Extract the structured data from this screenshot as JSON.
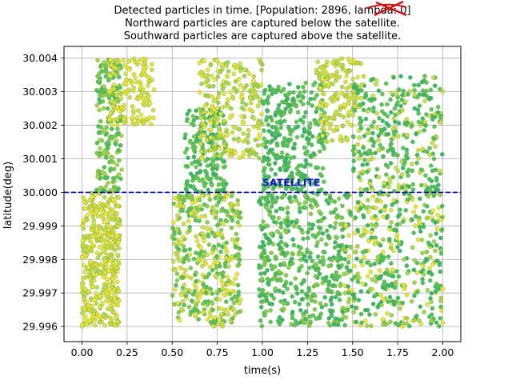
{
  "chart_data": {
    "type": "scatter",
    "title_lines": [
      "Detected particles in time. [Population: 2896, lambda: 0]",
      "Northward particles are captured below the satellite.",
      "Southward particles are captured above the satellite."
    ],
    "xlabel": "time(s)",
    "ylabel": "latitude(deg)",
    "xlim": [
      -0.1,
      2.1
    ],
    "ylim": [
      29.99555,
      30.00435
    ],
    "xticks": [
      0.0,
      0.25,
      0.5,
      0.75,
      1.0,
      1.25,
      1.5,
      1.75,
      2.0
    ],
    "xtick_labels": [
      "0.00",
      "0.25",
      "0.50",
      "0.75",
      "1.00",
      "1.25",
      "1.50",
      "1.75",
      "2.00"
    ],
    "yticks": [
      29.996,
      29.997,
      29.998,
      29.999,
      30.0,
      30.001,
      30.002,
      30.003,
      30.004
    ],
    "ytick_labels": [
      "29.996",
      "29.997",
      "29.998",
      "29.999",
      "30.000",
      "30.001",
      "30.002",
      "30.003",
      "30.004"
    ],
    "grid": true,
    "population": 2896,
    "satellite": {
      "latitude": 30.0,
      "label": "SATELLITE",
      "label_x": 1.0,
      "color": "#0000aa"
    },
    "clusters": [
      {
        "x": [
          0.0,
          0.21
        ],
        "y": [
          29.996,
          30.0
        ],
        "colors": [
          "#e8e830",
          "#d6e23a",
          "#b8dc4a"
        ],
        "density": 420
      },
      {
        "x": [
          0.08,
          0.22
        ],
        "y": [
          30.0,
          30.004
        ],
        "colors": [
          "#3fc25e",
          "#6bcb4d",
          "#9cd54a"
        ],
        "density": 200
      },
      {
        "x": [
          0.15,
          0.4
        ],
        "y": [
          30.002,
          30.004
        ],
        "colors": [
          "#e8e830",
          "#c8e040",
          "#dde635"
        ],
        "density": 140
      },
      {
        "x": [
          0.5,
          0.88
        ],
        "y": [
          29.996,
          30.0
        ],
        "colors": [
          "#e8e830",
          "#c8e040",
          "#7ccf4a",
          "#4dc35a"
        ],
        "density": 430
      },
      {
        "x": [
          0.57,
          0.8
        ],
        "y": [
          30.0,
          30.0025
        ],
        "colors": [
          "#2cb66a",
          "#3fc25e",
          "#5ec952"
        ],
        "density": 170
      },
      {
        "x": [
          0.65,
          1.0
        ],
        "y": [
          30.001,
          30.004
        ],
        "colors": [
          "#c8e040",
          "#e8e830",
          "#9cd54a"
        ],
        "density": 240
      },
      {
        "x": [
          0.98,
          1.45
        ],
        "y": [
          29.996,
          30.0
        ],
        "colors": [
          "#2cb66a",
          "#3fc25e",
          "#56c656",
          "#7ccf4a"
        ],
        "density": 460
      },
      {
        "x": [
          1.0,
          1.35
        ],
        "y": [
          30.0,
          30.0033
        ],
        "colors": [
          "#2cb66a",
          "#3fc25e",
          "#56c656"
        ],
        "density": 300
      },
      {
        "x": [
          1.3,
          1.55
        ],
        "y": [
          30.0015,
          30.004
        ],
        "colors": [
          "#e8e830",
          "#c8e040",
          "#b0da44"
        ],
        "density": 160
      },
      {
        "x": [
          1.45,
          2.0
        ],
        "y": [
          29.996,
          30.0
        ],
        "colors": [
          "#2cb66a",
          "#3fc25e",
          "#9cd54a",
          "#e8e830"
        ],
        "density": 430
      },
      {
        "x": [
          1.5,
          2.0
        ],
        "y": [
          30.0,
          30.0035
        ],
        "colors": [
          "#3fc25e",
          "#56c656",
          "#2cb66a",
          "#c8e040"
        ],
        "density": 330
      }
    ]
  }
}
